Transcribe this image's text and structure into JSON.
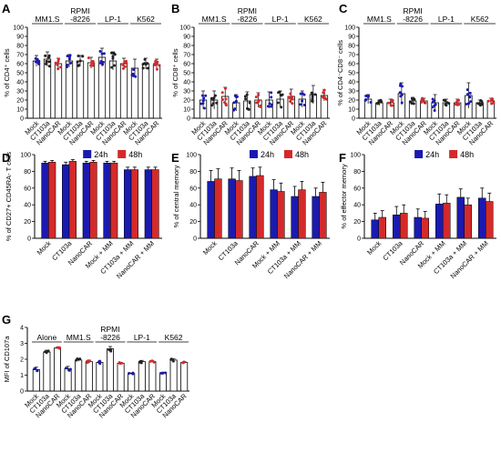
{
  "colors": {
    "blue": "#1a1ab0",
    "red": "#d42a2a",
    "bar": "#ffffff",
    "axis": "#000000"
  },
  "chart_data": [
    {
      "panel": "A",
      "type": "bar",
      "ylabel": "% of CD4⁺ cells",
      "ylim": [
        0,
        100
      ],
      "yticks": [
        0,
        10,
        20,
        30,
        40,
        50,
        60,
        70,
        80,
        90,
        100
      ],
      "categories": [
        "Mock",
        "CT103a",
        "NanoCAR",
        "Mock",
        "CT103a",
        "NanoCAR",
        "Mock",
        "CT103a",
        "NanoCAR",
        "Mock",
        "CT103a",
        "NanoCAR"
      ],
      "values": [
        63,
        65,
        60,
        63,
        63,
        61,
        67,
        63,
        60,
        55,
        60,
        59
      ],
      "errors": [
        6,
        8,
        6,
        7,
        6,
        6,
        10,
        10,
        6,
        10,
        6,
        6
      ],
      "point_colors": [
        "blue",
        "black",
        "red",
        "blue",
        "black",
        "red",
        "blue",
        "black",
        "red",
        "blue",
        "black",
        "red"
      ],
      "groups": [
        {
          "label": "MM1.S",
          "span": [
            0,
            2
          ]
        },
        {
          "label": "RPMI\n-8226",
          "span": [
            3,
            5
          ]
        },
        {
          "label": "LP-1",
          "span": [
            6,
            8
          ]
        },
        {
          "label": "K562",
          "span": [
            9,
            11
          ]
        }
      ]
    },
    {
      "panel": "B",
      "type": "bar",
      "ylabel": "% of CD8⁺ cells",
      "ylim": [
        0,
        100
      ],
      "yticks": [
        0,
        10,
        20,
        30,
        40,
        50,
        60,
        70,
        80,
        90,
        100
      ],
      "categories": [
        "Mock",
        "CT103a",
        "NanoCAR",
        "Mock",
        "CT103a",
        "NanoCAR",
        "Mock",
        "CT103a",
        "NanoCAR",
        "Mock",
        "CT103a",
        "NanoCAR"
      ],
      "values": [
        20,
        20,
        24,
        17,
        19,
        20,
        20,
        21,
        24,
        21,
        26,
        25
      ],
      "errors": [
        10,
        10,
        10,
        9,
        10,
        8,
        9,
        9,
        8,
        9,
        10,
        6
      ],
      "point_colors": [
        "blue",
        "black",
        "red",
        "blue",
        "black",
        "red",
        "blue",
        "black",
        "red",
        "blue",
        "black",
        "red"
      ],
      "groups": [
        {
          "label": "MM1.S",
          "span": [
            0,
            2
          ]
        },
        {
          "label": "RPMI\n-8226",
          "span": [
            3,
            5
          ]
        },
        {
          "label": "LP-1",
          "span": [
            6,
            8
          ]
        },
        {
          "label": "K562",
          "span": [
            9,
            11
          ]
        }
      ]
    },
    {
      "panel": "C",
      "type": "bar",
      "ylabel": "% of CD4⁻CD8⁻ cells",
      "ylim": [
        0,
        100
      ],
      "yticks": [
        0,
        10,
        20,
        30,
        40,
        50,
        60,
        70,
        80,
        90,
        100
      ],
      "categories": [
        "Mock",
        "CT103a",
        "NanoCAR",
        "Mock",
        "CT103a",
        "NanoCAR",
        "Mock",
        "CT103a",
        "NanoCAR",
        "Mock",
        "CT103a",
        "NanoCAR"
      ],
      "values": [
        21,
        17,
        17,
        27,
        19,
        19,
        17,
        17,
        17,
        25,
        17,
        19
      ],
      "errors": [
        5,
        3,
        4,
        12,
        4,
        3,
        9,
        4,
        4,
        14,
        3,
        3
      ],
      "point_colors": [
        "blue",
        "black",
        "red",
        "blue",
        "black",
        "red",
        "blue",
        "black",
        "red",
        "blue",
        "black",
        "red"
      ],
      "groups": [
        {
          "label": "MM1.S",
          "span": [
            0,
            2
          ]
        },
        {
          "label": "RPMI\n-8226",
          "span": [
            3,
            5
          ]
        },
        {
          "label": "LP-1",
          "span": [
            6,
            8
          ]
        },
        {
          "label": "K562",
          "span": [
            9,
            11
          ]
        }
      ]
    },
    {
      "panel": "D",
      "type": "bar",
      "ylabel": "% of CD27+ CD45RA- T cells",
      "ylim": [
        0,
        100
      ],
      "yticks": [
        0,
        20,
        40,
        60,
        80,
        100
      ],
      "categories": [
        "Mock",
        "CT103a",
        "NanoCAR",
        "Mock + MM",
        "CT103a + MM",
        "NanoCAR + MM"
      ],
      "legend": [
        "24h",
        "48h"
      ],
      "series": [
        {
          "name": "24h",
          "color": "blue",
          "values": [
            90,
            88,
            90,
            90,
            82,
            82
          ],
          "errors": [
            2,
            3,
            2,
            2,
            3,
            3
          ]
        },
        {
          "name": "48h",
          "color": "red",
          "values": [
            91,
            92,
            91,
            90,
            82,
            82
          ],
          "errors": [
            2,
            2,
            2,
            2,
            3,
            3
          ]
        }
      ]
    },
    {
      "panel": "E",
      "type": "bar",
      "ylabel": "% of central memory",
      "ylim": [
        0,
        100
      ],
      "yticks": [
        0,
        20,
        40,
        60,
        80,
        100
      ],
      "categories": [
        "Mock",
        "CT103a",
        "NanoCAR",
        "Mock + MM",
        "CT103a + MM",
        "NanoCAR + MM"
      ],
      "legend": [
        "24h",
        "48h"
      ],
      "series": [
        {
          "name": "24h",
          "color": "blue",
          "values": [
            68,
            71,
            74,
            58,
            50,
            50
          ],
          "errors": [
            13,
            13,
            10,
            12,
            12,
            10
          ]
        },
        {
          "name": "48h",
          "color": "red",
          "values": [
            71,
            69,
            75,
            56,
            58,
            55
          ],
          "errors": [
            12,
            12,
            10,
            10,
            10,
            12
          ]
        }
      ]
    },
    {
      "panel": "F",
      "type": "bar",
      "ylabel": "% of effector memory",
      "ylim": [
        0,
        100
      ],
      "yticks": [
        0,
        20,
        40,
        60,
        80,
        100
      ],
      "categories": [
        "Mock",
        "CT103a",
        "NanoCAR",
        "Mock + MM",
        "CT103a + MM",
        "NanoCAR + MM"
      ],
      "legend": [
        "24h",
        "48h"
      ],
      "series": [
        {
          "name": "24h",
          "color": "blue",
          "values": [
            22,
            28,
            25,
            41,
            49,
            48
          ],
          "errors": [
            8,
            10,
            10,
            12,
            10,
            12
          ]
        },
        {
          "name": "48h",
          "color": "red",
          "values": [
            25,
            30,
            24,
            42,
            40,
            44
          ],
          "errors": [
            8,
            10,
            8,
            10,
            8,
            10
          ]
        }
      ]
    },
    {
      "panel": "G",
      "type": "bar",
      "ylabel": "MFI of CD107a",
      "ylim": [
        0,
        4
      ],
      "yticks": [
        0,
        1,
        2,
        3,
        4
      ],
      "categories": [
        "Mock",
        "CT103a",
        "NanoCAR",
        "Mock",
        "CT103a",
        "NanoCAR",
        "Mock",
        "CT103a",
        "NanoCAR",
        "Mock",
        "CT103a",
        "NanoCAR",
        "Mock",
        "CT103a",
        "NanoCAR"
      ],
      "values": [
        1.35,
        2.45,
        2.7,
        1.4,
        1.95,
        1.85,
        1.8,
        2.65,
        1.75,
        1.1,
        1.85,
        1.85,
        1.15,
        1.95,
        1.8
      ],
      "errors": [
        0.15,
        0.12,
        0.05,
        0.15,
        0.08,
        0.1,
        0.08,
        0.15,
        0.05,
        0.04,
        0.08,
        0.05,
        0.04,
        0.08,
        0.05
      ],
      "point_colors": [
        "blue",
        "black",
        "red",
        "blue",
        "black",
        "red",
        "blue",
        "black",
        "red",
        "blue",
        "black",
        "red",
        "blue",
        "black",
        "red"
      ],
      "groups": [
        {
          "label": "Alone",
          "span": [
            0,
            2
          ]
        },
        {
          "label": "MM1.S",
          "span": [
            3,
            5
          ]
        },
        {
          "label": "RPMI\n-8226",
          "span": [
            6,
            8
          ]
        },
        {
          "label": "LP-1",
          "span": [
            9,
            11
          ]
        },
        {
          "label": "K562",
          "span": [
            12,
            14
          ]
        }
      ]
    }
  ]
}
